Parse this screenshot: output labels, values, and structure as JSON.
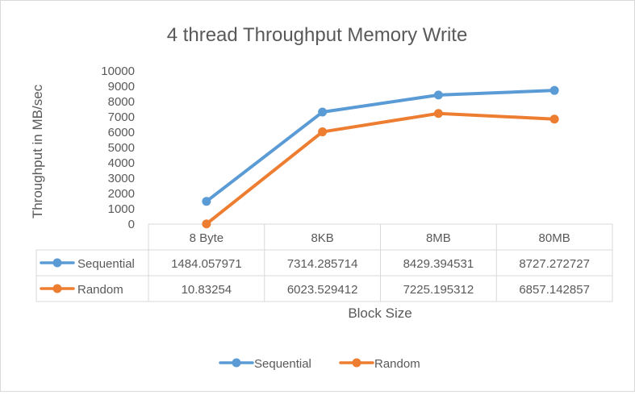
{
  "chart_data": {
    "type": "line",
    "title": "4 thread Throughput Memory Write",
    "xlabel": "Block Size",
    "ylabel": "Throughput in MB/sec",
    "categories": [
      "8 Byte",
      "8KB",
      "8MB",
      "80MB"
    ],
    "ylim": [
      0,
      10000
    ],
    "yticks": [
      "0",
      "1000",
      "2000",
      "3000",
      "4000",
      "5000",
      "6000",
      "7000",
      "8000",
      "9000",
      "10000"
    ],
    "grid": false,
    "legend_position": "bottom",
    "data_table": true,
    "series": [
      {
        "name": "Sequential",
        "color": "#5B9BD5",
        "values": [
          1484.057971,
          7314.285714,
          8429.394531,
          8727.272727
        ],
        "labels": [
          "1484.057971",
          "7314.285714",
          "8429.394531",
          "8727.272727"
        ]
      },
      {
        "name": "Random",
        "color": "#ED7D31",
        "values": [
          10.83254,
          6023.529412,
          7225.195312,
          6857.142857
        ],
        "labels": [
          "10.83254",
          "6023.529412",
          "7225.195312",
          "6857.142857"
        ]
      }
    ]
  }
}
